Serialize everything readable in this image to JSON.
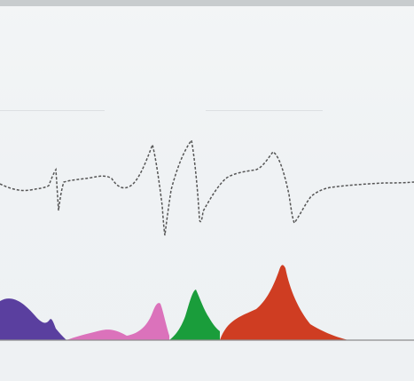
{
  "title": "",
  "colors": {
    "background": "#f0f3f5",
    "top_bar": "#c8ccce",
    "trace": "#555555",
    "baseline": "#8d8d8d",
    "band_purple": "#5a3f9f",
    "band_pink": "#db72bb",
    "band_green": "#1a9d3b",
    "band_red": "#cf3d22"
  },
  "trace_line": {
    "style": "dashed",
    "description": "dotted waveform"
  },
  "bands": [
    {
      "name": "purple",
      "color": "#5a3f9f"
    },
    {
      "name": "pink",
      "color": "#db72bb"
    },
    {
      "name": "green",
      "color": "#1a9d3b"
    },
    {
      "name": "red",
      "color": "#cf3d22"
    }
  ]
}
